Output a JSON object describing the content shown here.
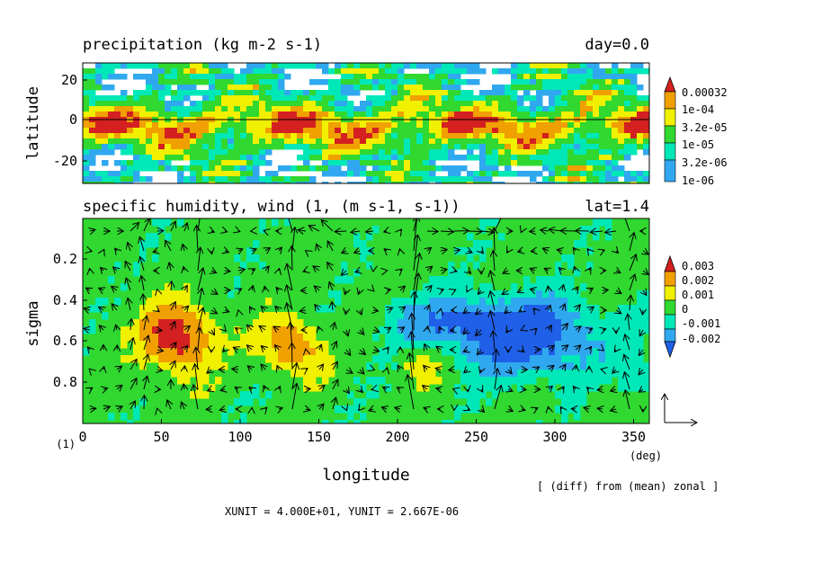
{
  "chart_data": [
    {
      "type": "heatmap",
      "title": "precipitation (kg m-2 s-1)",
      "title_right": "day=0.0",
      "ylabel": "latitude",
      "xlim": [
        0,
        360
      ],
      "ylim": [
        -30,
        30
      ],
      "yticks": [
        "20",
        "0",
        "-20"
      ],
      "legend_placement": "right",
      "legend": [
        "0.00032",
        "1e-04",
        "3.2e-05",
        "1e-05",
        "3.2e-06",
        "1e-06"
      ],
      "colors": [
        "#d42020",
        "#f0a000",
        "#f0f000",
        "#30d830",
        "#00e8b8",
        "#30a8f0"
      ]
    },
    {
      "type": "heatmap",
      "title": "specific humidity, wind (1, (m s-1, s-1))",
      "title_right": "lat=1.4",
      "xlabel": "longitude",
      "ylabel": "sigma",
      "xlim": [
        0,
        360
      ],
      "ylim": [
        1.0,
        0.0
      ],
      "xticks": [
        "0",
        "50",
        "100",
        "150",
        "200",
        "250",
        "300",
        "350"
      ],
      "yticks": [
        "0.2",
        "0.4",
        "0.6",
        "0.8"
      ],
      "x_unit_label": "(deg)",
      "y_unit_label": "(1)",
      "legend_placement": "right",
      "legend": [
        "0.003",
        "0.002",
        "0.001",
        "0",
        "-0.001",
        "-0.002"
      ],
      "colors": [
        "#d42020",
        "#f0a000",
        "#f0f000",
        "#30d830",
        "#00e8b8",
        "#30a8f0",
        "#2060e8"
      ]
    }
  ],
  "notes": {
    "diff": "[ (diff) from (mean) zonal ]",
    "units": "XUNIT = 4.000E+01, YUNIT = 2.667E-06"
  }
}
